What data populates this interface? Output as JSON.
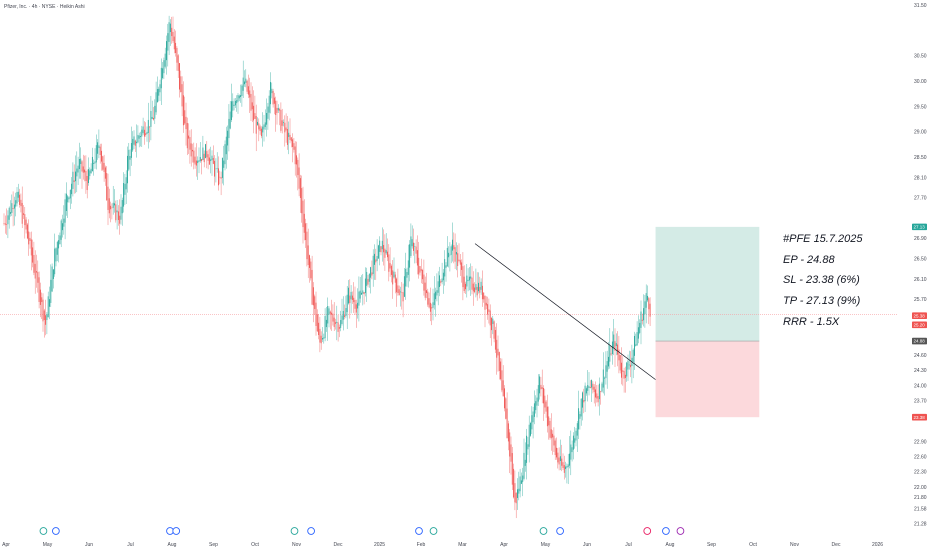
{
  "header": {
    "title": "Pfizer, Inc. · 4h · NYSE · Heikin Ashi"
  },
  "annotations": {
    "line1": "#PFE 15.7.2025",
    "line2": "EP - 24.88",
    "line3": "SL - 23.38 (6%)",
    "line4": "TP - 27.13 (9%)",
    "line5": "RRR - 1.5X"
  },
  "colors": {
    "up": "#26a69a",
    "down": "#ef5350",
    "profit_zone": "#d4ebe6",
    "loss_zone": "#fcd9dc",
    "current_line": "#f7a1a5",
    "axis_text": "#434651"
  },
  "chart_data": {
    "type": "candlestick",
    "style": "Heikin Ashi",
    "x_tick_labels": [
      "Apr",
      "May",
      "Jun",
      "Jul",
      "Aug",
      "Sep",
      "Oct",
      "Nov",
      "Dec",
      "2025",
      "Feb",
      "Mar",
      "Apr",
      "May",
      "Jun",
      "Jul",
      "Aug",
      "Sep",
      "Oct",
      "Nov",
      "Dec",
      "2026"
    ],
    "x_tick_months": [
      0,
      1,
      2,
      3,
      4,
      5,
      6,
      7,
      8,
      9,
      10,
      11,
      12,
      13,
      14,
      15,
      16,
      17,
      18,
      19,
      20,
      21
    ],
    "y_tick_labels": [
      "31.50",
      "30.50",
      "30.00",
      "29.50",
      "29.00",
      "28.50",
      "28.10",
      "27.70",
      "26.90",
      "26.50",
      "26.10",
      "25.70",
      "24.60",
      "24.30",
      "24.00",
      "23.70",
      "22.90",
      "22.60",
      "22.30",
      "22.00",
      "21.80",
      "21.58",
      "21.28"
    ],
    "y_tick_values": [
      31.5,
      30.5,
      30.0,
      29.5,
      29.0,
      28.5,
      28.1,
      27.7,
      26.9,
      26.5,
      26.1,
      25.7,
      24.6,
      24.3,
      24.0,
      23.7,
      22.9,
      22.6,
      22.3,
      22.0,
      21.8,
      21.58,
      21.28
    ],
    "ylim": [
      21.0,
      31.6
    ],
    "price_path": [
      [
        0.0,
        27.2
      ],
      [
        0.3,
        27.8
      ],
      [
        0.6,
        26.8
      ],
      [
        0.9,
        25.6
      ],
      [
        1.0,
        25.2
      ],
      [
        1.2,
        26.5
      ],
      [
        1.5,
        27.7
      ],
      [
        1.8,
        28.4
      ],
      [
        2.0,
        28.0
      ],
      [
        2.3,
        28.8
      ],
      [
        2.5,
        27.6
      ],
      [
        2.8,
        27.3
      ],
      [
        3.0,
        28.6
      ],
      [
        3.3,
        29.0
      ],
      [
        3.6,
        29.3
      ],
      [
        3.8,
        30.3
      ],
      [
        4.0,
        31.2
      ],
      [
        4.2,
        30.1
      ],
      [
        4.4,
        28.8
      ],
      [
        4.6,
        28.5
      ],
      [
        4.9,
        28.6
      ],
      [
        5.2,
        28.0
      ],
      [
        5.5,
        29.6
      ],
      [
        5.8,
        30.0
      ],
      [
        6.0,
        29.3
      ],
      [
        6.2,
        28.8
      ],
      [
        6.4,
        29.9
      ],
      [
        6.7,
        29.1
      ],
      [
        7.0,
        28.6
      ],
      [
        7.2,
        27.3
      ],
      [
        7.4,
        25.9
      ],
      [
        7.6,
        24.8
      ],
      [
        7.8,
        25.4
      ],
      [
        8.1,
        25.2
      ],
      [
        8.3,
        25.8
      ],
      [
        8.5,
        25.6
      ],
      [
        8.8,
        26.2
      ],
      [
        9.1,
        26.8
      ],
      [
        9.3,
        26.3
      ],
      [
        9.6,
        25.7
      ],
      [
        9.8,
        26.9
      ],
      [
        10.0,
        26.3
      ],
      [
        10.3,
        25.5
      ],
      [
        10.6,
        26.4
      ],
      [
        10.8,
        26.8
      ],
      [
        11.1,
        26.0
      ],
      [
        11.3,
        26.0
      ],
      [
        11.5,
        25.9
      ],
      [
        11.8,
        25.1
      ],
      [
        12.0,
        23.8
      ],
      [
        12.2,
        22.6
      ],
      [
        12.3,
        21.6
      ],
      [
        12.5,
        22.4
      ],
      [
        12.7,
        23.4
      ],
      [
        12.9,
        24.1
      ],
      [
        13.1,
        23.3
      ],
      [
        13.3,
        22.6
      ],
      [
        13.5,
        22.3
      ],
      [
        13.7,
        22.9
      ],
      [
        13.9,
        23.7
      ],
      [
        14.1,
        24.0
      ],
      [
        14.3,
        23.8
      ],
      [
        14.5,
        24.4
      ],
      [
        14.7,
        24.9
      ],
      [
        14.9,
        24.2
      ],
      [
        15.1,
        24.5
      ],
      [
        15.3,
        25.2
      ],
      [
        15.5,
        25.8
      ],
      [
        15.6,
        25.4
      ]
    ],
    "trendline": {
      "from": [
        11.35,
        26.8
      ],
      "to": [
        15.7,
        24.12
      ]
    },
    "position": {
      "entry": 24.88,
      "stop_loss": 23.38,
      "take_profit": 27.13,
      "start_month": 15.7,
      "end_month": 18.2
    },
    "price_badges": [
      {
        "value": 27.13,
        "text": "27.13",
        "color": "#26a69a"
      },
      {
        "value": 25.38,
        "text": "25.38",
        "color": "#ef5350"
      },
      {
        "value": 25.2,
        "text": "25.20",
        "color": "#ef5350"
      },
      {
        "value": 24.88,
        "text": "24.88",
        "color": "#555555"
      },
      {
        "value": 23.38,
        "text": "23.38",
        "color": "#ef5350"
      }
    ],
    "events": [
      {
        "month": 0.95,
        "kind": "dividend",
        "color": "#26a69a"
      },
      {
        "month": 1.25,
        "kind": "earnings",
        "color": "#2962ff"
      },
      {
        "month": 4.0,
        "kind": "dividend",
        "color": "#2962ff"
      },
      {
        "month": 4.15,
        "kind": "earnings",
        "color": "#2962ff"
      },
      {
        "month": 7.0,
        "kind": "dividend",
        "color": "#26a69a"
      },
      {
        "month": 7.4,
        "kind": "earnings",
        "color": "#2962ff"
      },
      {
        "month": 10.0,
        "kind": "earnings",
        "color": "#2962ff"
      },
      {
        "month": 10.35,
        "kind": "dividend",
        "color": "#26a69a"
      },
      {
        "month": 13.0,
        "kind": "dividend",
        "color": "#26a69a"
      },
      {
        "month": 13.4,
        "kind": "earnings",
        "color": "#2962ff"
      },
      {
        "month": 15.5,
        "kind": "split",
        "color": "#e91e63"
      },
      {
        "month": 15.95,
        "kind": "earnings",
        "color": "#2962ff"
      },
      {
        "month": 16.3,
        "kind": "other",
        "color": "#9c27b0"
      }
    ]
  }
}
